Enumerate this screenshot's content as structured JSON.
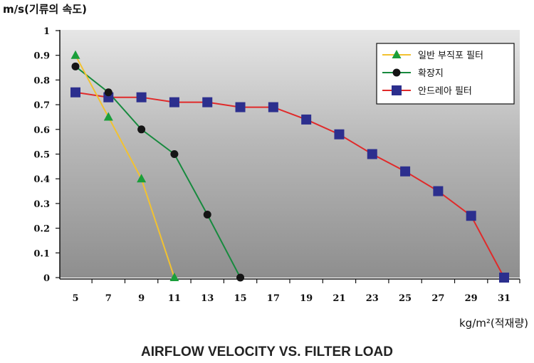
{
  "chart_data": {
    "type": "line",
    "title": "AIRFLOW VELOCITY VS. FILTER LOAD",
    "ylabel": "m/s(기류의 속도)",
    "xlabel": "kg/m²(적재량)",
    "x_ticks": [
      5,
      7,
      9,
      11,
      13,
      15,
      17,
      19,
      21,
      23,
      25,
      27,
      29,
      31
    ],
    "y_ticks": [
      "0",
      "0.1",
      "0.2",
      "0.3",
      "0.4",
      "0.5",
      "0.6",
      "0.7",
      "0.8",
      "0.9",
      "1"
    ],
    "xlim": [
      5,
      31
    ],
    "ylim": [
      0,
      1
    ],
    "grid": false,
    "legend_position": "top-right",
    "series": [
      {
        "name": "일반 부직포 필터",
        "line_color": "#f2c230",
        "marker": "triangle",
        "marker_color": "#1a9e3a",
        "x": [
          5,
          7,
          9,
          11
        ],
        "y": [
          0.9,
          0.65,
          0.4,
          0.0
        ]
      },
      {
        "name": "확장지",
        "line_color": "#178a3e",
        "marker": "circle",
        "marker_color": "#151515",
        "x": [
          5,
          7,
          9,
          11,
          13,
          15
        ],
        "y": [
          0.855,
          0.75,
          0.6,
          0.5,
          0.255,
          0.0
        ]
      },
      {
        "name": "안드레아 필터",
        "line_color": "#e02a2a",
        "marker": "square",
        "marker_color": "#2c2f8e",
        "x": [
          5,
          7,
          9,
          11,
          13,
          15,
          17,
          19,
          21,
          23,
          25,
          27,
          29,
          31
        ],
        "y": [
          0.75,
          0.73,
          0.73,
          0.71,
          0.71,
          0.69,
          0.69,
          0.64,
          0.58,
          0.5,
          0.43,
          0.35,
          0.25,
          0.0
        ]
      }
    ]
  }
}
